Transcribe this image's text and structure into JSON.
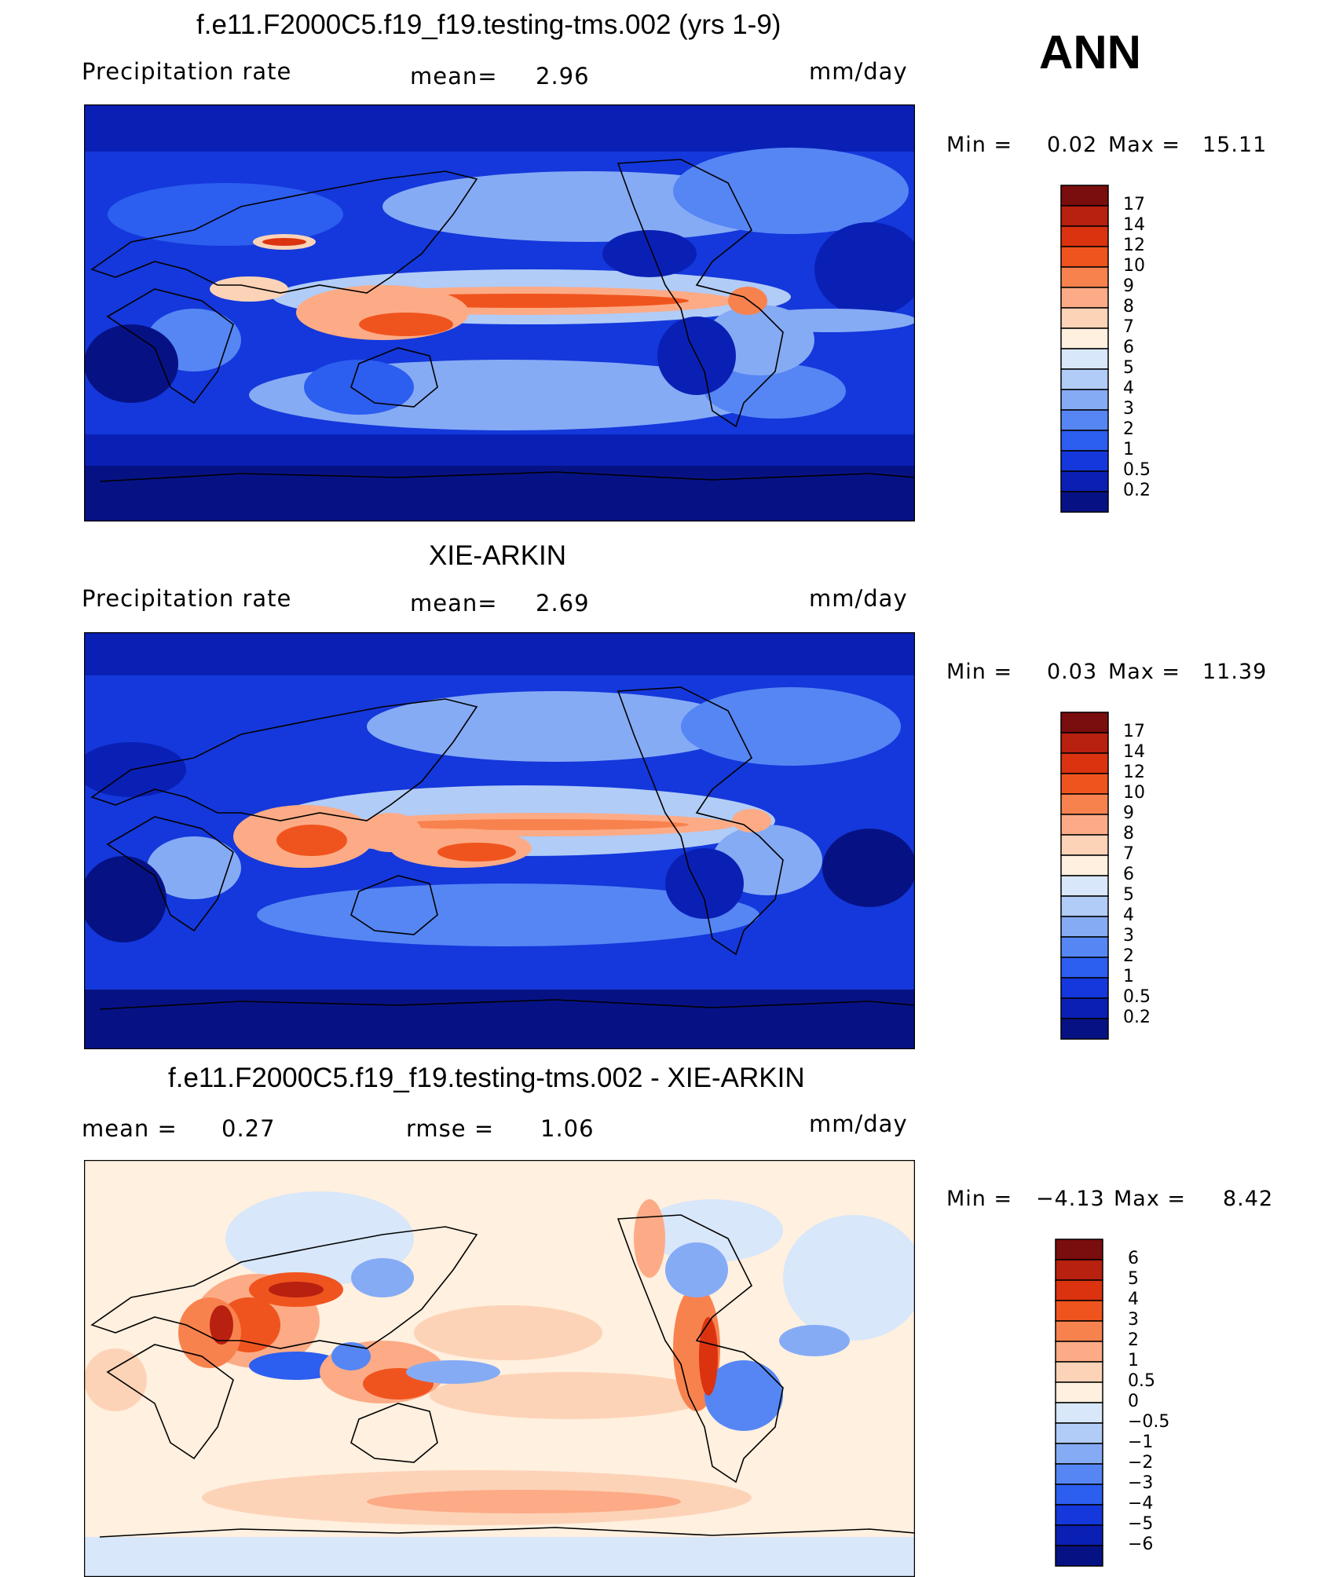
{
  "season": "ANN",
  "panels": [
    {
      "title": "f.e11.F2000C5.f19_f19.testing-tms.002 (yrs 1-9)",
      "variable": "Precipitation  rate",
      "stat_label": "mean=",
      "stat_value": "2.96",
      "units": "mm/day",
      "min_label": "Min  =",
      "min_value": "0.02",
      "max_label": "Max  =",
      "max_value": "15.11",
      "colorbar_ticks": [
        "17",
        "14",
        "12",
        "10",
        "9",
        "8",
        "7",
        "6",
        "5",
        "4",
        "3",
        "2",
        "1",
        "0.5",
        "0.2"
      ],
      "colors": [
        "#7a0d0d",
        "#b8200f",
        "#db3210",
        "#f0541e",
        "#f8824e",
        "#fcab86",
        "#fdd3b7",
        "#fff0df",
        "#d8e7fa",
        "#b1ccf7",
        "#86abf5",
        "#5586f4",
        "#2c5ef0",
        "#1438db",
        "#0a20b5",
        "#061284"
      ]
    },
    {
      "title": "XIE-ARKIN",
      "variable": "Precipitation  rate",
      "stat_label": "mean=",
      "stat_value": "2.69",
      "units": "mm/day",
      "min_label": "Min  =",
      "min_value": "0.03",
      "max_label": "Max  =",
      "max_value": "11.39",
      "colorbar_ticks": [
        "17",
        "14",
        "12",
        "10",
        "9",
        "8",
        "7",
        "6",
        "5",
        "4",
        "3",
        "2",
        "1",
        "0.5",
        "0.2"
      ],
      "colors": [
        "#7a0d0d",
        "#b8200f",
        "#db3210",
        "#f0541e",
        "#f8824e",
        "#fcab86",
        "#fdd3b7",
        "#fff0df",
        "#d8e7fa",
        "#b1ccf7",
        "#86abf5",
        "#5586f4",
        "#2c5ef0",
        "#1438db",
        "#0a20b5",
        "#061284"
      ]
    },
    {
      "title": "f.e11.F2000C5.f19_f19.testing-tms.002 - XIE-ARKIN",
      "mean_label": "mean  =",
      "mean_value": "0.27",
      "stat_label": "rmse  =",
      "stat_value": "1.06",
      "units": "mm/day",
      "min_label": "Min  =",
      "min_value": "−4.13",
      "max_label": "Max  =",
      "max_value": "8.42",
      "colorbar_ticks": [
        "6",
        "5",
        "4",
        "3",
        "2",
        "1",
        "0.5",
        "0",
        "−0.5",
        "−1",
        "−2",
        "−3",
        "−4",
        "−5",
        "−6"
      ],
      "colors": [
        "#7a0d0d",
        "#b8200f",
        "#db3210",
        "#f0541e",
        "#f8824e",
        "#fcab86",
        "#fdd3b7",
        "#fff0df",
        "#d8e7fa",
        "#b1ccf7",
        "#86abf5",
        "#5586f4",
        "#2c5ef0",
        "#1438db",
        "#0a20b5",
        "#061284"
      ]
    }
  ]
}
